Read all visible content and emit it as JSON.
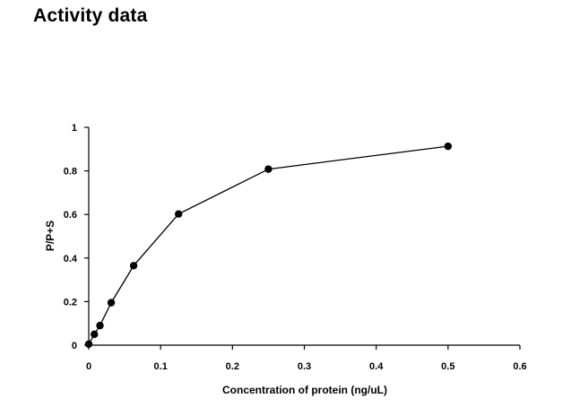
{
  "page_title": "Activity data",
  "chart_data": {
    "type": "scatter",
    "title": "",
    "xlabel": "Concentration of protein (ng/uL)",
    "ylabel": "P/P+S",
    "xlim": [
      0,
      0.6
    ],
    "ylim": [
      0,
      1
    ],
    "xticks": [
      0,
      0.1,
      0.2,
      0.3,
      0.4,
      0.5,
      0.6
    ],
    "yticks": [
      0,
      0.2,
      0.4,
      0.6,
      0.8,
      1
    ],
    "xtick_labels": [
      "0",
      "0.1",
      "0.2",
      "0.3",
      "0.4",
      "0.5",
      "0.6"
    ],
    "ytick_labels": [
      "0",
      "0.2",
      "0.4",
      "0.6",
      "0.8",
      "1"
    ],
    "grid": false,
    "legend": "none",
    "series": [
      {
        "x": [
          0,
          0.0078,
          0.0156,
          0.03125,
          0.0625,
          0.125,
          0.25,
          0.5
        ],
        "y": [
          0.005,
          0.05,
          0.09,
          0.195,
          0.365,
          0.602,
          0.808,
          0.913
        ],
        "color": "#000000",
        "marker": "circle",
        "line": "solid"
      }
    ]
  }
}
